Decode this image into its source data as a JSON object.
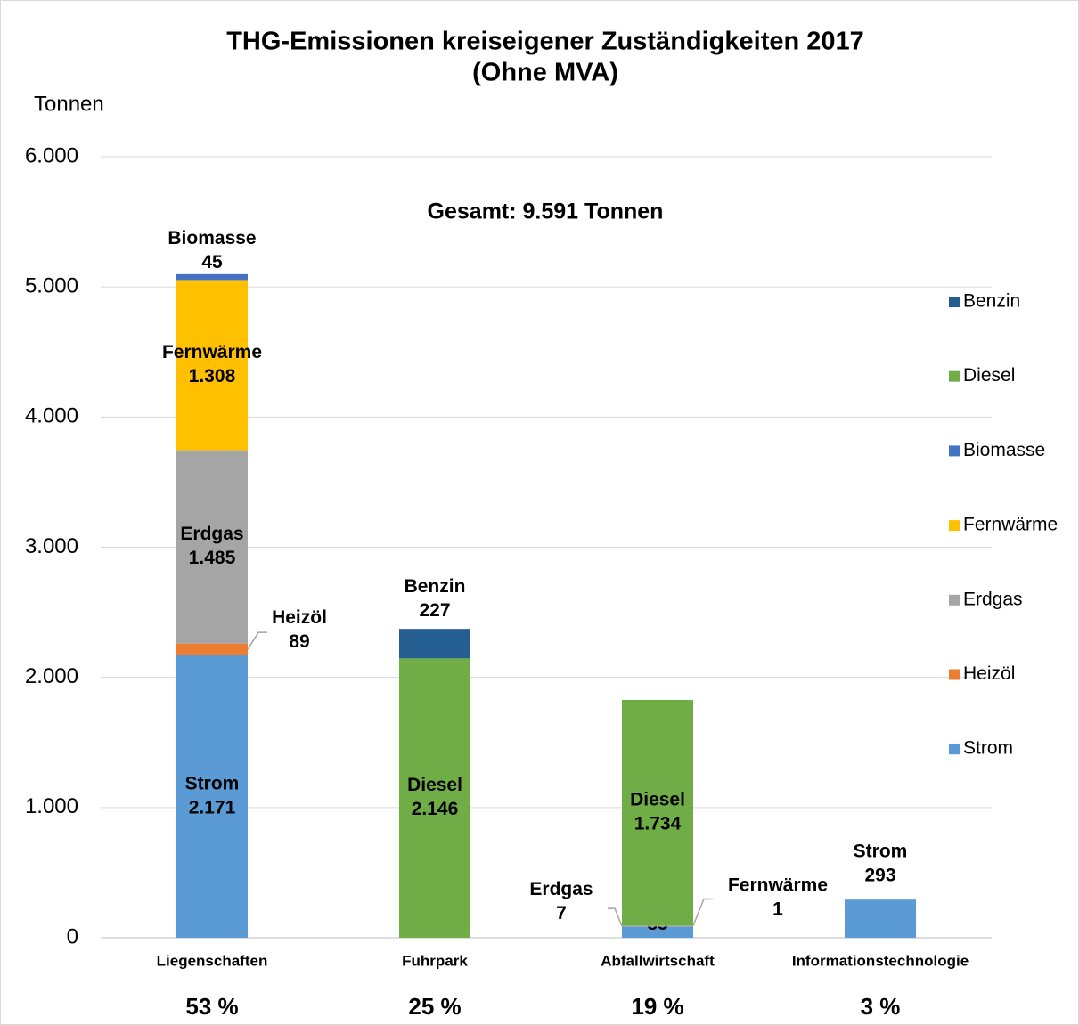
{
  "chart_data": {
    "type": "stacked_bar",
    "title": "THG-Emissionen kreiseigener Zuständigkeiten 2017",
    "subtitle": "(Ohne MVA)",
    "y_axis_label": "Tonnen",
    "annotation": "Gesamt: 9.591 Tonnen",
    "categories": [
      "Liegenschaften",
      "Fuhrpark",
      "Abfallwirtschaft",
      "Informationstechnologie"
    ],
    "category_shares": [
      "53 %",
      "25 %",
      "19 %",
      "3 %"
    ],
    "series": [
      {
        "name": "Strom",
        "color": "#5b9bd5",
        "values": [
          2171,
          null,
          85,
          293
        ],
        "value_labels": [
          "2.171",
          null,
          "85",
          "293"
        ]
      },
      {
        "name": "Heizöl",
        "color": "#ed7d31",
        "values": [
          89,
          null,
          null,
          null
        ],
        "value_labels": [
          "89",
          null,
          null,
          null
        ]
      },
      {
        "name": "Erdgas",
        "color": "#a5a5a5",
        "values": [
          1485,
          null,
          7,
          null
        ],
        "value_labels": [
          "1.485",
          null,
          "7",
          null
        ]
      },
      {
        "name": "Fernwärme",
        "color": "#ffc000",
        "values": [
          1308,
          null,
          1,
          null
        ],
        "value_labels": [
          "1.308",
          null,
          "1",
          null
        ]
      },
      {
        "name": "Biomasse",
        "color": "#4472c4",
        "values": [
          45,
          null,
          null,
          null
        ],
        "value_labels": [
          "45",
          null,
          null,
          null
        ]
      },
      {
        "name": "Diesel",
        "color": "#70ad47",
        "values": [
          null,
          2146,
          1734,
          null
        ],
        "value_labels": [
          null,
          "2.146",
          "1.734",
          null
        ]
      },
      {
        "name": "Benzin",
        "color": "#255e91",
        "values": [
          null,
          227,
          null,
          null
        ],
        "value_labels": [
          null,
          "227",
          null,
          null
        ]
      }
    ],
    "ylim": [
      0,
      6000
    ],
    "yticks": [
      0,
      {
        "value": 1000,
        "label": "1.000"
      },
      {
        "value": 2000,
        "label": "2.000"
      },
      {
        "value": 3000,
        "label": "3.000"
      },
      {
        "value": 4000,
        "label": "4.000"
      },
      {
        "value": 5000,
        "label": "5.000"
      },
      {
        "value": 6000,
        "label": "6.000"
      }
    ],
    "grid": true,
    "legend": "right"
  }
}
